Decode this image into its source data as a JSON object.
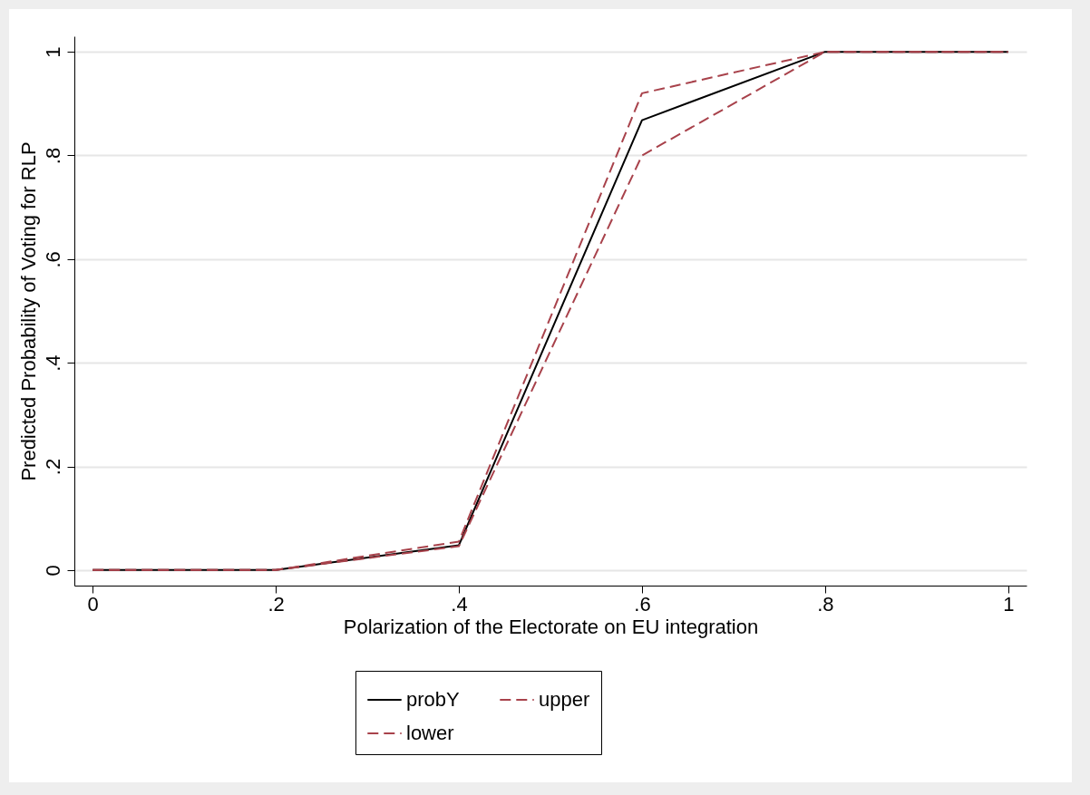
{
  "chart_data": {
    "type": "line",
    "xlabel": "Polarization of the Electorate on EU integration",
    "ylabel": "Predicted Probability of Voting for RLP",
    "x": [
      0,
      0.2,
      0.4,
      0.6,
      0.8,
      1
    ],
    "series": [
      {
        "name": "probY",
        "color": "#000000",
        "line_style": "solid",
        "values": [
          0,
          0,
          0.048,
          0.868,
          1,
          1
        ]
      },
      {
        "name": "lower",
        "color": "#a8424b",
        "line_style": "dashed",
        "values": [
          0,
          0,
          0.046,
          0.8,
          1,
          1
        ]
      },
      {
        "name": "upper",
        "color": "#a8424b",
        "line_style": "dashed",
        "values": [
          0,
          0,
          0.055,
          0.92,
          1,
          1
        ]
      }
    ],
    "xlim": [
      -0.02,
      1.02
    ],
    "ylim": [
      -0.03,
      1.03
    ],
    "xticks": [
      0,
      {
        "value": 0.2,
        "label": ".2"
      },
      {
        "value": 0.4,
        "label": ".4"
      },
      {
        "value": 0.6,
        "label": ".6"
      },
      {
        "value": 0.8,
        "label": ".8"
      },
      1
    ],
    "yticks": [
      0,
      {
        "value": 0.2,
        "label": ".2"
      },
      {
        "value": 0.4,
        "label": ".4"
      },
      {
        "value": 0.6,
        "label": ".6"
      },
      {
        "value": 0.8,
        "label": ".8"
      },
      1
    ],
    "grid": "y",
    "legend": "bottom",
    "marker": "none"
  }
}
